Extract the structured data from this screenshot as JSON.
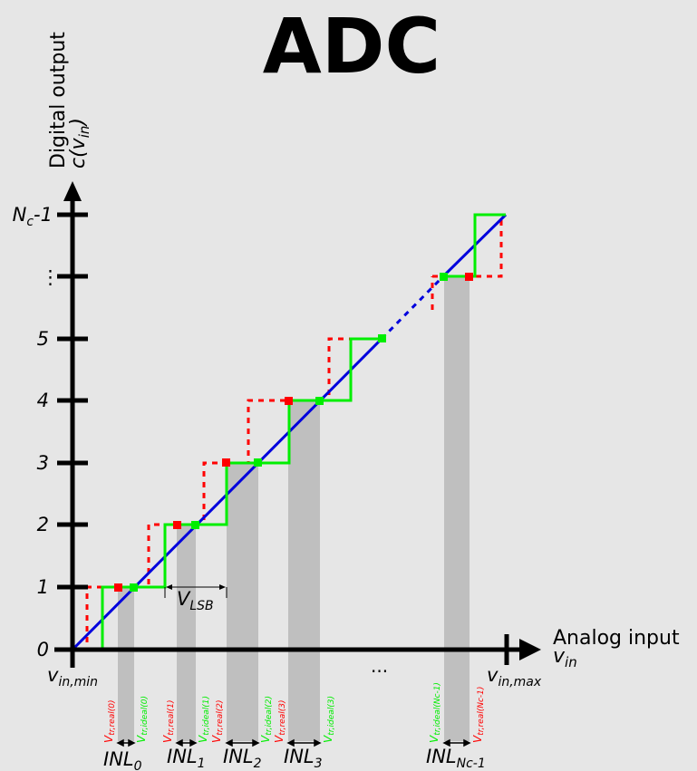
{
  "title": "ADC",
  "y_axis": {
    "label_line1": "Digital output",
    "label_line2_main": "c(v",
    "label_line2_sub": "in",
    "label_line2_close": ")",
    "ticks": [
      {
        "label": "0",
        "value": 0
      },
      {
        "label": "1",
        "value": 1
      },
      {
        "label": "2",
        "value": 2
      },
      {
        "label": "3",
        "value": 3
      },
      {
        "label": "4",
        "value": 4
      },
      {
        "label": "5",
        "value": 5
      },
      {
        "label": "⋮",
        "value": 6
      },
      {
        "label_main": "N",
        "label_sub": "c",
        "label_tail": "-1",
        "value": 7
      }
    ]
  },
  "x_axis": {
    "label_line1": "Analog input",
    "label_line2_main": "v",
    "label_line2_sub": "in",
    "min_main": "v",
    "min_sub": "in,min",
    "max_main": "v",
    "max_sub": "in,max",
    "gap": "..."
  },
  "vlsb": {
    "main": "V",
    "sub": "LSB"
  },
  "inl_labels": [
    {
      "main": "INL",
      "sub": "0"
    },
    {
      "main": "INL",
      "sub": "1"
    },
    {
      "main": "INL",
      "sub": "2"
    },
    {
      "main": "INL",
      "sub": "3"
    },
    {
      "main": "INL",
      "sub": "Nc-1"
    }
  ],
  "transition_labels": [
    {
      "main": "V",
      "sub": "tr,real(0)",
      "color": "#ff0000"
    },
    {
      "main": "V",
      "sub": "tr,ideal(0)",
      "color": "#00ee00"
    },
    {
      "main": "V",
      "sub": "tr,real(1)",
      "color": "#ff0000"
    },
    {
      "main": "V",
      "sub": "tr,ideal(1)",
      "color": "#00ee00"
    },
    {
      "main": "V",
      "sub": "tr,real(2)",
      "color": "#ff0000"
    },
    {
      "main": "V",
      "sub": "tr,ideal(2)",
      "color": "#00ee00"
    },
    {
      "main": "V",
      "sub": "tr,real(3)",
      "color": "#ff0000"
    },
    {
      "main": "V",
      "sub": "tr,ideal(3)",
      "color": "#00ee00"
    },
    {
      "main": "V",
      "sub": "tr,ideal(Nc-1)",
      "color": "#00ee00"
    },
    {
      "main": "V",
      "sub": "tr,real(Nc-1)",
      "color": "#ff0000"
    }
  ],
  "colors": {
    "ideal_line": "#0000dd",
    "ideal_staircase": "#00ee00",
    "real_staircase": "#ff0000",
    "inl_region": "#bfbfbf",
    "axis": "#000000",
    "background": "#e6e6e6"
  }
}
